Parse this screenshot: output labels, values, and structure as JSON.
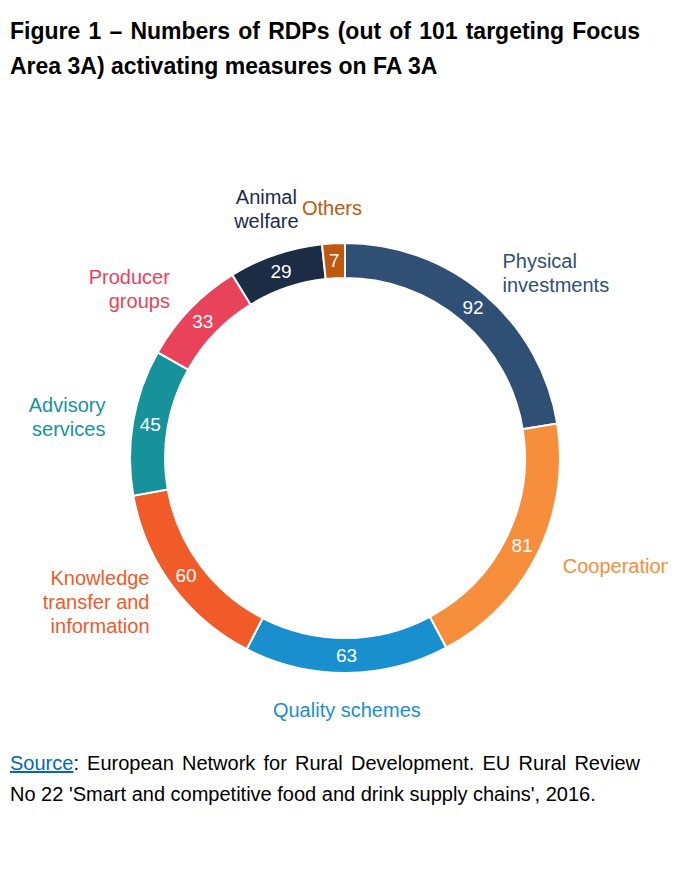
{
  "chart_data": {
    "type": "pie",
    "title": "Figure 1 – Numbers of RDPs (out of 101 targeting Focus Area 3A) activating measures on FA 3A",
    "categories": [
      "Physical investments",
      "Cooperation",
      "Quality schemes",
      "Knowledge transfer and information",
      "Advisory services",
      "Producer groups",
      "Animal welfare",
      "Others"
    ],
    "values": [
      92,
      81,
      63,
      60,
      45,
      33,
      29,
      7
    ],
    "colors": [
      "#2f4f74",
      "#f68e3c",
      "#1a8fcd",
      "#f15a29",
      "#17929a",
      "#e8435a",
      "#1d2c45",
      "#c0580f"
    ],
    "data_labels": true,
    "source": {
      "label": "Source",
      "text": ": European Network for Rural Development. EU Rural Review No 22 'Smart and competitive food and drink supply chains', 2016."
    }
  }
}
